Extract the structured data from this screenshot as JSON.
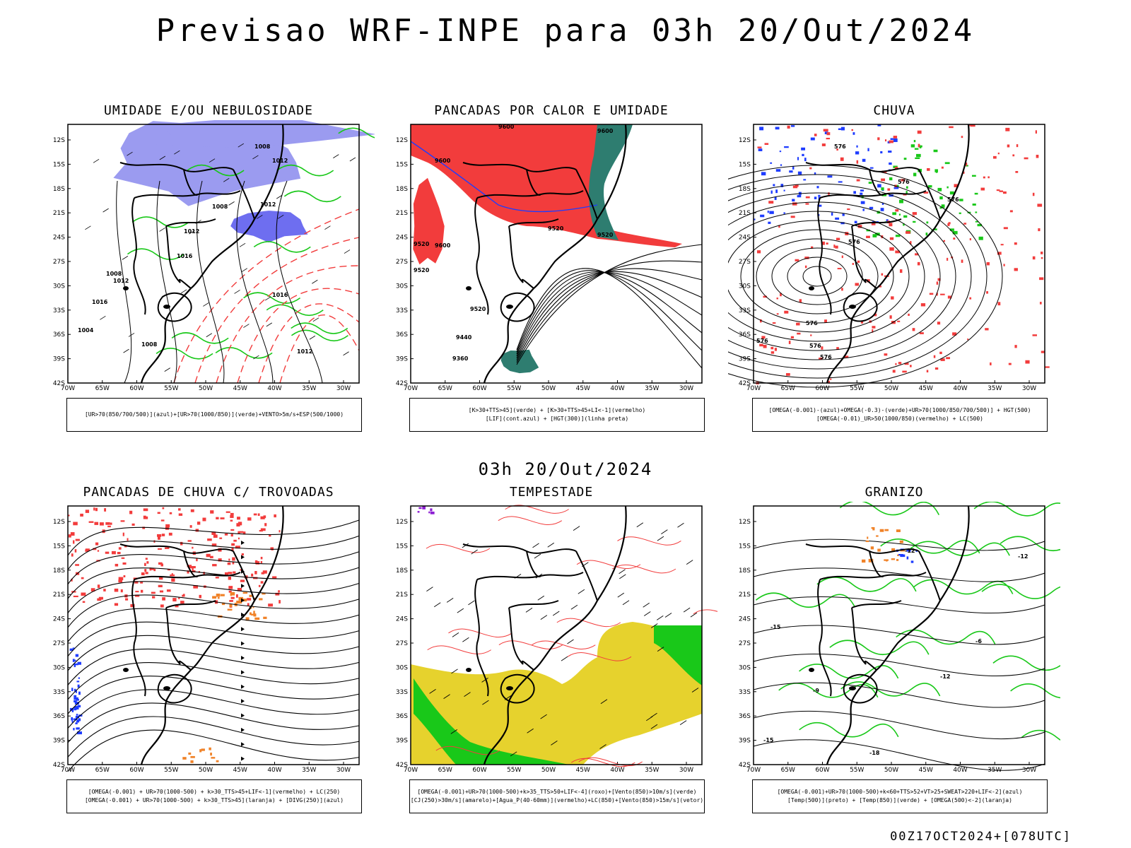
{
  "header": {
    "title": "Previsao WRF-INPE  para 03h 20/Out/2024"
  },
  "subheader": {
    "text": "03h 20/Out/2024"
  },
  "footer": {
    "run": "00Z17OCT2024+[078UTC]"
  },
  "axes": {
    "lat_labels": [
      "12S",
      "15S",
      "18S",
      "21S",
      "24S",
      "27S",
      "30S",
      "33S",
      "36S",
      "39S",
      "42S"
    ],
    "lon_labels": [
      "70W",
      "65W",
      "60W",
      "55W",
      "50W",
      "45W",
      "40W",
      "35W",
      "30W"
    ]
  },
  "panels": [
    {
      "id": "umidade",
      "title": "UMIDADE E/OU NEBULOSIDADE",
      "legend": [
        "[UR>70(850/700/500)](azul)+[UR>70(1000/850)](verde)+VENTO>5m/s+ESP(500/1000)"
      ],
      "labels": [
        "1008",
        "1012",
        "1012",
        "1008",
        "1012",
        "1016",
        "1012",
        "1016",
        "1008",
        "1004",
        "1008",
        "1016",
        "1012"
      ]
    },
    {
      "id": "pancadas-calor",
      "title": "PANCADAS POR CALOR E UMIDADE",
      "legend": [
        "[K>30+TTS>45](verde) + [K>30+TTS>45+LI<-1](vermelho)",
        "[LIF](cont.azul) + [HGT(300)](linha preta)"
      ],
      "labels": [
        "9600",
        "9600",
        "9600",
        "9520",
        "9600",
        "9520",
        "9520",
        "9520",
        "9440",
        "9360",
        "9520"
      ]
    },
    {
      "id": "chuva",
      "title": "CHUVA",
      "legend": [
        "[OMEGA(-0.001)-(azul)+OMEGA(-0.3)-(verde)+UR>70(1000/850/700/500)] + HGT(500)",
        "[OMEGA(-0.01)_UR>50(1000/850)(vermelho) + LC(500)"
      ],
      "labels": [
        "576",
        "576",
        "576",
        "576",
        "576",
        "576",
        "576",
        "576"
      ]
    },
    {
      "id": "pancadas-trovoadas",
      "title": "PANCADAS DE CHUVA C/ TROVOADAS",
      "legend": [
        "[OMEGA(-0.001) + UR>70(1000-500) + k>30_TTS>45+LIF<-1](vermelho) + LC(250)",
        "[OMEGA(-0.001) + UR>70(1000-500) + k>30_TTS>45](laranja) + [DIVG(250)](azul)"
      ],
      "labels": []
    },
    {
      "id": "tempestade",
      "title": "TEMPESTADE",
      "legend": [
        "[OMEGA(-0.001)+UR>70(1000-500)+k>35_TTS>50+LIF<-4](roxo)+[Vento(850)>10m/s](verde)",
        "[CJ(250)>30m/s](amarelo)+[Agua_P(40-60mm)](vermelho)+LC(850)+[Vento(850)>15m/s](vetor)"
      ],
      "labels": []
    },
    {
      "id": "granizo",
      "title": "GRANIZO",
      "legend": [
        "[OMEGA(-0.001)+UR>70(1000-500)+k<60+TTS>52+VT>25+SWEAT>220+LIF<-2](azul)",
        "[Temp(500)](preto) + [Temp(850)](verde) + [OMEGA(500)<-2](laranja)"
      ],
      "labels": [
        "-12",
        "-9",
        "-6",
        "-15",
        "-18",
        "-12",
        "-15",
        "-12"
      ]
    }
  ],
  "colors": {
    "red": "#f23c3c",
    "green": "#19c819",
    "blue": "#1e3cff",
    "lavender": "#9b9bf0",
    "teal": "#2e7d70",
    "yellow": "#e6d22d",
    "orange": "#f08228"
  }
}
